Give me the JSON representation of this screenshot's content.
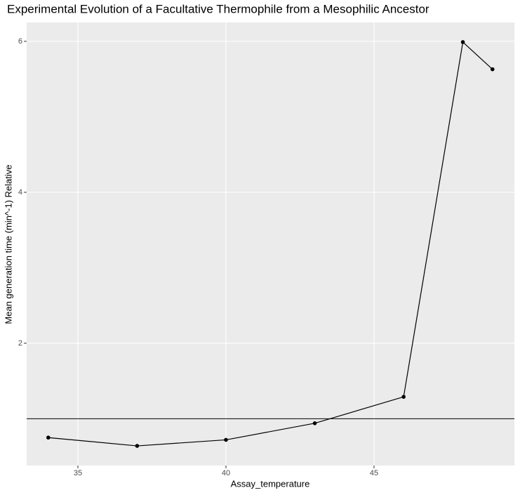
{
  "chart_data": {
    "type": "line",
    "title": "Experimental Evolution of a Facultative Thermophile from a Mesophilic Ancestor",
    "x_label": "Assay_temperature",
    "y_label": "Mean generation time (min^-1)   Relative",
    "x": [
      34,
      37,
      40,
      43,
      46,
      48,
      49
    ],
    "series": [
      {
        "color": "#000000",
        "values": [
          0.75,
          0.64,
          0.72,
          0.94,
          1.29,
          5.99,
          5.63
        ]
      }
    ],
    "hline": 1,
    "xlim": [
      33.27,
      49.74
    ],
    "xticks": [
      35,
      40,
      45
    ],
    "ylim": [
      0.38,
      6.25
    ],
    "yticks": [
      2,
      4,
      6
    ],
    "grid": true
  }
}
